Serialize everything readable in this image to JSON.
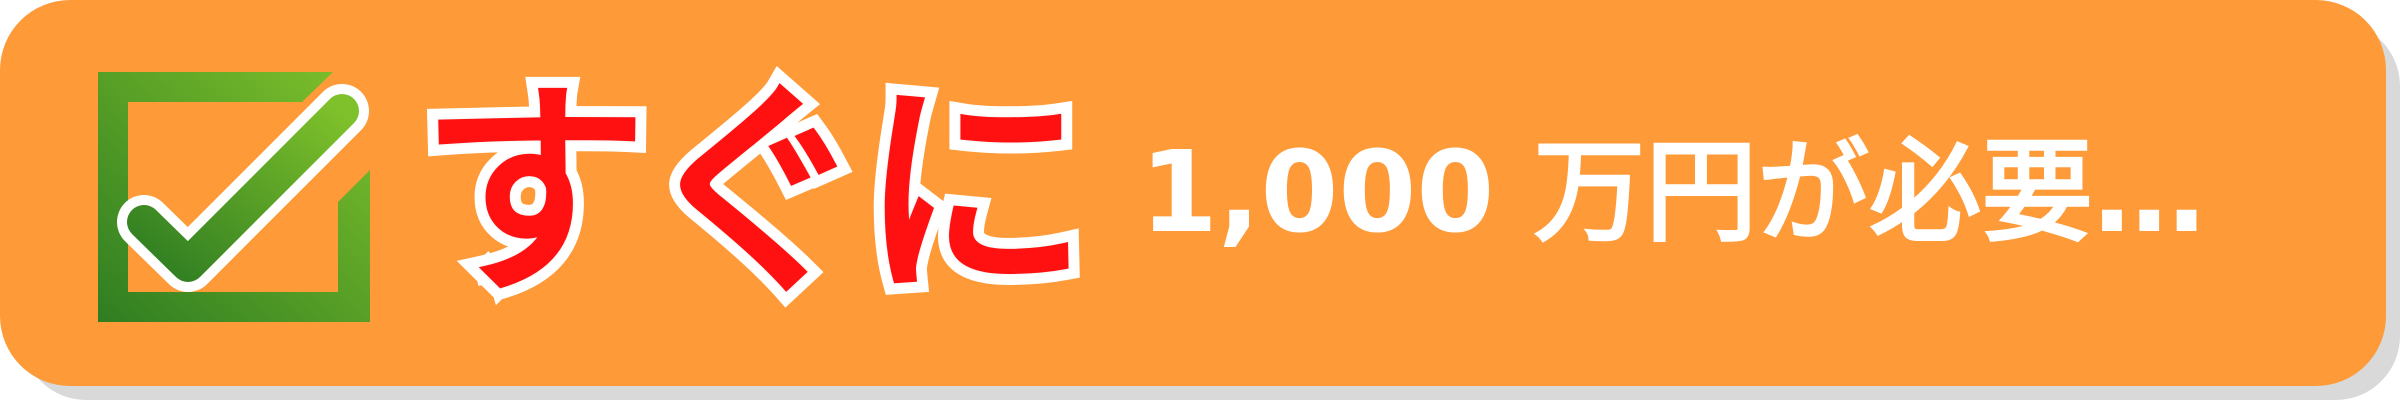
{
  "banner": {
    "background_color": "#fe9a37",
    "icon": "checkmark-icon",
    "lead_text": "すぐに",
    "lead_color": "#ff1111",
    "main_text": "1,000 万円が必要…",
    "main_color": "#ffffff"
  }
}
